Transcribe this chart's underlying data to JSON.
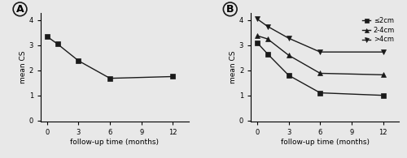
{
  "panel_A": {
    "x": [
      0,
      1,
      3,
      6,
      12
    ],
    "y": [
      3.35,
      3.05,
      2.38,
      1.68,
      1.75
    ],
    "xlabel": "follow-up time (months)",
    "ylabel": "mean CS",
    "xticks": [
      0,
      3,
      6,
      9,
      12
    ],
    "yticks": [
      0,
      1,
      2,
      3,
      4
    ],
    "ylim": [
      -0.05,
      4.3
    ],
    "xlim": [
      -0.6,
      13.5
    ],
    "label": "A"
  },
  "panel_B": {
    "series": [
      {
        "label": "≤2cm",
        "marker": "s",
        "x": [
          0,
          1,
          3,
          6,
          12
        ],
        "y": [
          3.1,
          2.65,
          1.8,
          1.1,
          1.0
        ]
      },
      {
        "label": "2-4cm",
        "marker": "^",
        "x": [
          0,
          1,
          3,
          6,
          12
        ],
        "y": [
          3.38,
          3.25,
          2.6,
          1.88,
          1.82
        ]
      },
      {
        "label": ">4cm",
        "marker": "v",
        "x": [
          0,
          1,
          3,
          6,
          12
        ],
        "y": [
          4.05,
          3.75,
          3.28,
          2.73,
          2.73
        ]
      }
    ],
    "xlabel": "follow-up time (months)",
    "ylabel": "mean CS",
    "xticks": [
      0,
      3,
      6,
      9,
      12
    ],
    "yticks": [
      0,
      1,
      2,
      3,
      4
    ],
    "ylim": [
      -0.05,
      4.3
    ],
    "xlim": [
      -0.6,
      13.5
    ],
    "label": "B"
  },
  "bg_color": "#e8e8e8",
  "line_color": "#1a1a1a",
  "marker_color": "#1a1a1a",
  "marker_size": 4,
  "linewidth": 1.0,
  "font_size": 6.5,
  "tick_font_size": 6,
  "label_font_size": 9,
  "legend_font_size": 6
}
